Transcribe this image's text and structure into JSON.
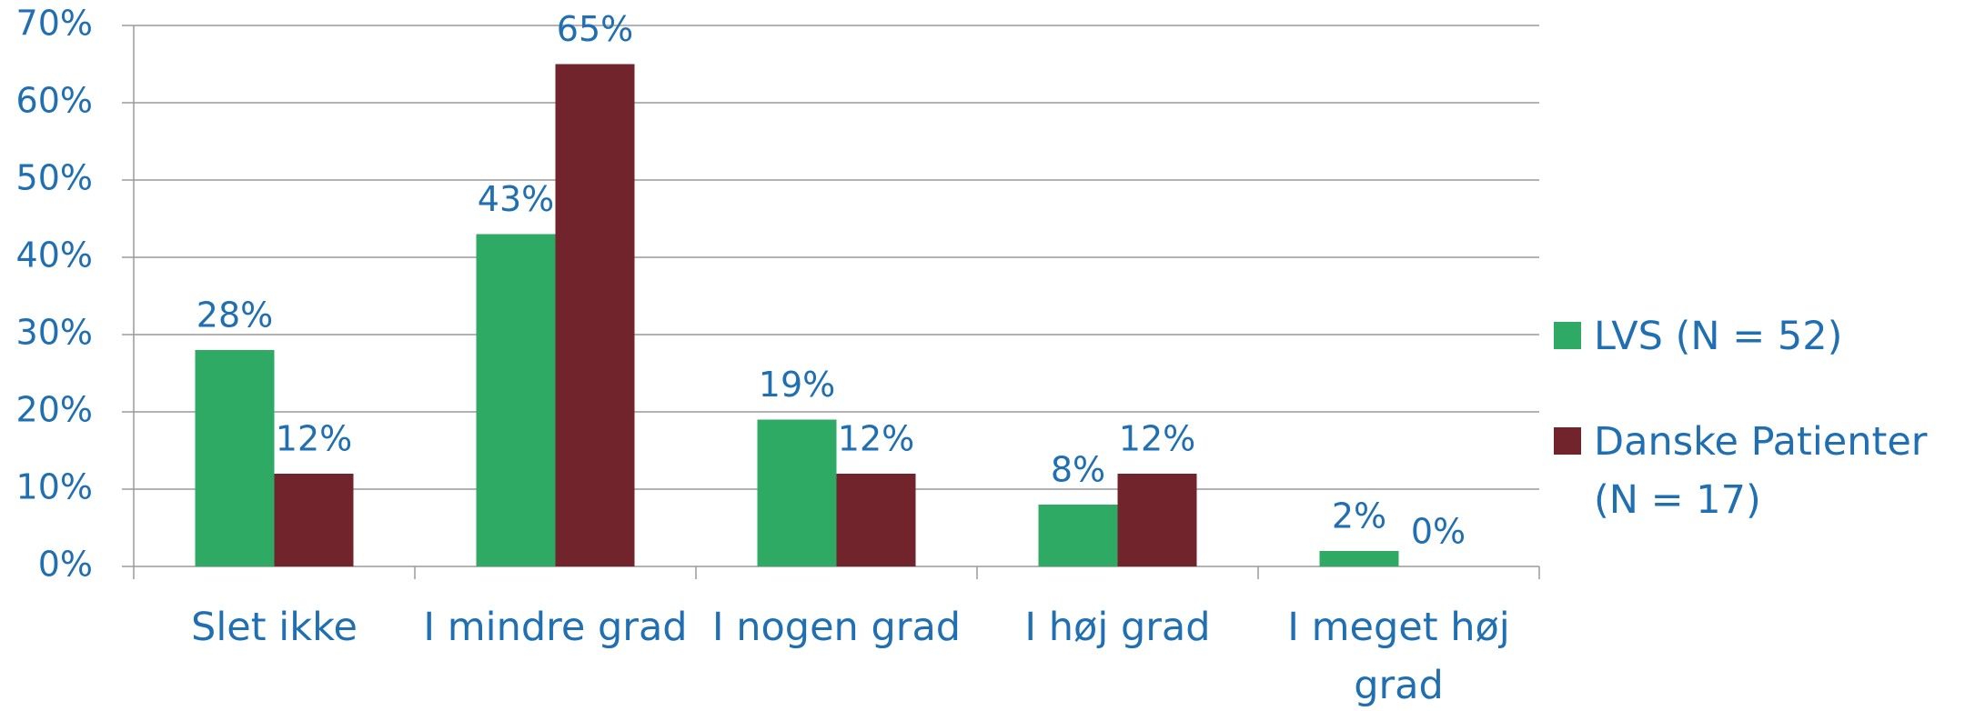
{
  "chart_data": {
    "type": "bar",
    "categories": [
      "Slet ikke",
      "I mindre grad",
      "I nogen grad",
      "I høj grad",
      "I meget høj grad"
    ],
    "series": [
      {
        "name": "LVS (N = 52)",
        "color": "#2eaa64",
        "values": [
          28,
          43,
          19,
          8,
          2
        ],
        "value_labels": [
          "28%",
          "43%",
          "19%",
          "8%",
          "2%"
        ]
      },
      {
        "name": "Danske Patienter (N = 17)",
        "color": "#72242d",
        "values": [
          12,
          65,
          12,
          12,
          0
        ],
        "value_labels": [
          "12%",
          "65%",
          "12%",
          "12%",
          "0%"
        ]
      }
    ],
    "ylim": [
      0,
      70
    ],
    "yticks": [
      {
        "value": 0,
        "label": "0%"
      },
      {
        "value": 10,
        "label": "10%"
      },
      {
        "value": 20,
        "label": "20%"
      },
      {
        "value": 30,
        "label": "30%"
      },
      {
        "value": 40,
        "label": "40%"
      },
      {
        "value": 50,
        "label": "50%"
      },
      {
        "value": 60,
        "label": "60%"
      },
      {
        "value": 70,
        "label": "70%"
      }
    ],
    "grid": true,
    "legend": "right"
  }
}
